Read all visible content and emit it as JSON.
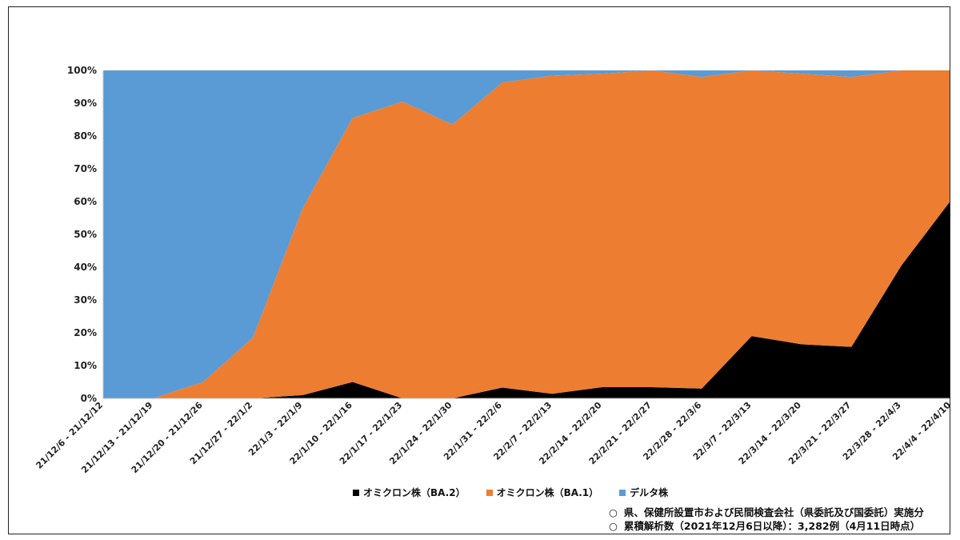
{
  "chart_data": {
    "type": "area",
    "stacked": true,
    "percent": true,
    "categories": [
      "21/12/6 - 21/12/12",
      "21/12/13 - 21/12/19",
      "21/12/20 - 21/12/26",
      "21/12/27 - 22/1/2",
      "22/1/3 - 22/1/9",
      "22/1/10 - 22/1/16",
      "22/1/17 - 22/1/23",
      "22/1/24 - 22/1/30",
      "22/1/31 - 22/2/6",
      "22/2/7 - 22/2/13",
      "22/2/14 - 22/2/20",
      "22/2/21 - 22/2/27",
      "22/2/28 - 22/3/6",
      "22/3/7 - 22/3/13",
      "22/3/14 - 22/3/20",
      "22/3/21 - 22/3/27",
      "22/3/28 - 22/4/3",
      "22/4/4 - 22/4/10"
    ],
    "series": [
      {
        "name": "オミクロン株（BA.2）",
        "color": "#000000",
        "values": [
          0,
          0,
          0,
          0,
          1,
          5,
          0,
          0,
          3.3,
          1.4,
          3.4,
          3.4,
          3,
          19,
          16.5,
          15.7,
          40.5,
          60.5
        ]
      },
      {
        "name": "オミクロン株（BA.1）",
        "color": "#ED7D31",
        "values": [
          0,
          0,
          5,
          18.5,
          57,
          80.5,
          90.5,
          83.5,
          93,
          97,
          95.6,
          96.6,
          95,
          81,
          82.5,
          82.3,
          59.5,
          39.5
        ]
      },
      {
        "name": "デルタ株",
        "color": "#5B9BD5",
        "values": [
          100,
          100,
          95,
          81.5,
          42,
          14.5,
          9.5,
          16.5,
          3.7,
          1.6,
          1,
          0,
          2,
          0,
          1,
          2,
          0,
          0
        ]
      }
    ],
    "ylim": [
      0,
      100
    ],
    "yticks": [
      "0%",
      "10%",
      "20%",
      "30%",
      "40%",
      "50%",
      "60%",
      "70%",
      "80%",
      "90%",
      "100%"
    ],
    "legend_position": "bottom",
    "grid": false
  },
  "notes": [
    {
      "mark": "○",
      "text": "県、保健所設置市および民間検査会社（県委託及び国委託）実施分"
    },
    {
      "mark": "○",
      "text": "累積解析数（2021年12月6日以降）：3,282例（4月11日時点）"
    }
  ]
}
